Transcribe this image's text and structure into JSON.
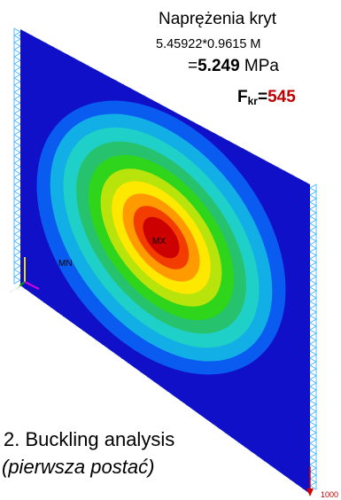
{
  "title_line1": "Naprężenia kryt",
  "title_line2": "5.45922*0.9615 M",
  "title_line3_prefix": "=",
  "title_line3_value": "5.249",
  "title_line3_unit": " MPa",
  "force_letter": "F",
  "force_sub": "kr",
  "force_eq": "=",
  "force_value": "545",
  "caption_line1": "2. Buckling analysis",
  "caption_line2": "(pierwsza postać)",
  "label_max": "MX",
  "label_min": "MN",
  "load_label": "1000",
  "colors": {
    "contour": [
      "#1010c8",
      "#0a5cf0",
      "#12aee6",
      "#1fd0c8",
      "#27c26e",
      "#2fd51a",
      "#b9e40b",
      "#ffe800",
      "#ff9b00",
      "#f23c00",
      "#cc0000"
    ],
    "support": "#40b7ff",
    "load": "#d00000"
  }
}
